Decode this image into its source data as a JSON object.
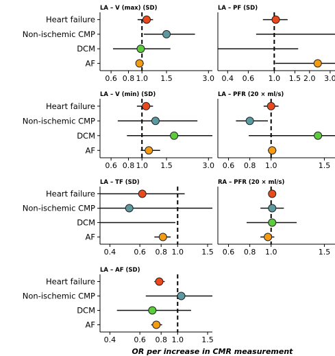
{
  "figure": {
    "xlabel": "OR per increase in CMR measurement",
    "colors": {
      "Heart failure": "#e8491d",
      "Non-ischemic CMP": "#5b9aa0",
      "DCM": "#5ccc3c",
      "AF": "#f59b12"
    }
  },
  "chart_data": [
    {
      "type": "forest",
      "title": "LA – V (max) (SD)",
      "categories": [
        "Heart failure",
        "Non-ischemic CMP",
        "DCM",
        "AF"
      ],
      "xticks": [
        "0.6",
        "0.8",
        "1.0",
        "1.5",
        "3.0"
      ],
      "xlim": [
        0.5,
        3.2
      ],
      "scale": "log",
      "reference": 1.0,
      "series": [
        {
          "category": "Heart failure",
          "or": 1.08,
          "ci": [
            0.93,
            1.2
          ]
        },
        {
          "category": "Non-ischemic CMP",
          "or": 1.5,
          "ci": [
            1.03,
            2.4
          ]
        },
        {
          "category": "DCM",
          "or": 0.98,
          "ci": [
            0.62,
            1.6
          ]
        },
        {
          "category": "AF",
          "or": 0.96,
          "ci": [
            0.9,
            1.03
          ]
        }
      ]
    },
    {
      "type": "forest",
      "title": "LA – PF (SD)",
      "categories": [
        "Heart failure",
        "Non-ischemic CMP",
        "DCM",
        "AF"
      ],
      "xticks": [
        "0.4",
        "0.6",
        "1.0",
        "1.5",
        "2.0",
        "3.0"
      ],
      "xlim": [
        0.33,
        3.3
      ],
      "scale": "log",
      "reference": 1.0,
      "series": [
        {
          "category": "Heart failure",
          "or": 1.03,
          "ci": [
            0.8,
            1.3
          ]
        },
        {
          "category": "Non-ischemic CMP",
          "or": null,
          "ci": [
            0.7,
            3.3
          ]
        },
        {
          "category": "DCM",
          "or": null,
          "ci": [
            0.33,
            1.6
          ]
        },
        {
          "category": "AF",
          "or": 2.35,
          "ci": [
            1.02,
            3.3
          ]
        }
      ]
    },
    {
      "type": "forest",
      "title": "LA – V (min) (SD)",
      "categories": [
        "Heart failure",
        "Non-ischemic CMP",
        "DCM",
        "AF"
      ],
      "xticks": [
        "0.6",
        "0.8",
        "1.0",
        "1.5",
        "3.0"
      ],
      "xlim": [
        0.5,
        3.2
      ],
      "scale": "log",
      "reference": 1.0,
      "series": [
        {
          "category": "Heart failure",
          "or": 1.07,
          "ci": [
            0.92,
            1.2
          ]
        },
        {
          "category": "Non-ischemic CMP",
          "or": 1.25,
          "ci": [
            0.67,
            2.5
          ]
        },
        {
          "category": "DCM",
          "or": 1.7,
          "ci": [
            0.78,
            3.2
          ]
        },
        {
          "category": "AF",
          "or": 1.12,
          "ci": [
            0.98,
            1.35
          ]
        }
      ]
    },
    {
      "type": "forest",
      "title": "LA – PFR (20 × ml/s)",
      "categories": [
        "Heart failure",
        "Non-ischemic CMP",
        "DCM",
        "AF"
      ],
      "xticks": [
        "0.6",
        "0.8",
        "1.0",
        "1.5"
      ],
      "xlim": [
        0.5,
        1.6
      ],
      "scale": "linear",
      "reference": 1.0,
      "series": [
        {
          "category": "Heart failure",
          "or": 1.0,
          "ci": [
            0.93,
            1.07
          ]
        },
        {
          "category": "Non-ischemic CMP",
          "or": 0.8,
          "ci": [
            0.67,
            0.97
          ]
        },
        {
          "category": "DCM",
          "or": 1.44,
          "ci": [
            0.79,
            1.6
          ]
        },
        {
          "category": "AF",
          "or": 1.01,
          "ci": [
            0.97,
            1.05
          ]
        }
      ]
    },
    {
      "type": "forest",
      "title": "LA – TF (SD)",
      "categories": [
        "Heart failure",
        "Non-ischemic CMP",
        "DCM",
        "AF"
      ],
      "xticks": [
        "0.4",
        "0.6",
        "0.8",
        "1.0",
        "1.5"
      ],
      "xlim": [
        0.35,
        1.6
      ],
      "scale": "log",
      "reference": 1.0,
      "series": [
        {
          "category": "Heart failure",
          "or": 0.62,
          "ci": [
            0.35,
            1.1
          ]
        },
        {
          "category": "Non-ischemic CMP",
          "or": 0.52,
          "ci": [
            0.35,
            1.6
          ]
        },
        {
          "category": "DCM",
          "or": null,
          "ci": [
            0.35,
            0.97
          ]
        },
        {
          "category": "AF",
          "or": 0.82,
          "ci": [
            0.73,
            0.91
          ]
        }
      ]
    },
    {
      "type": "forest",
      "title": "RA – PFR (20 × ml/s)",
      "categories": [
        "Heart failure",
        "Non-ischemic CMP",
        "DCM",
        "AF"
      ],
      "xticks": [
        "0.6",
        "0.8",
        "1.0",
        "1.5"
      ],
      "xlim": [
        0.5,
        1.6
      ],
      "scale": "linear",
      "reference": 1.0,
      "series": [
        {
          "category": "Heart failure",
          "or": 1.01,
          "ci": [
            0.98,
            1.04
          ]
        },
        {
          "category": "Non-ischemic CMP",
          "or": 1.01,
          "ci": [
            0.9,
            1.12
          ]
        },
        {
          "category": "DCM",
          "or": 1.01,
          "ci": [
            0.77,
            1.24
          ]
        },
        {
          "category": "AF",
          "or": 0.97,
          "ci": [
            0.9,
            1.03
          ]
        }
      ]
    },
    {
      "type": "forest",
      "title": "LA – AF (SD)",
      "categories": [
        "Heart failure",
        "Non-ischemic CMP",
        "DCM",
        "AF"
      ],
      "xticks": [
        "0.4",
        "0.6",
        "0.8",
        "1.0",
        "1.5"
      ],
      "xlim": [
        0.35,
        1.6
      ],
      "scale": "log",
      "reference": 1.0,
      "series": [
        {
          "category": "Heart failure",
          "or": 0.78,
          "ci": [
            0.73,
            0.84
          ]
        },
        {
          "category": "Non-ischemic CMP",
          "or": 1.05,
          "ci": [
            0.65,
            1.6
          ]
        },
        {
          "category": "DCM",
          "or": 0.71,
          "ci": [
            0.44,
            1.2
          ]
        },
        {
          "category": "AF",
          "or": 0.75,
          "ci": [
            0.7,
            0.81
          ]
        }
      ]
    }
  ]
}
